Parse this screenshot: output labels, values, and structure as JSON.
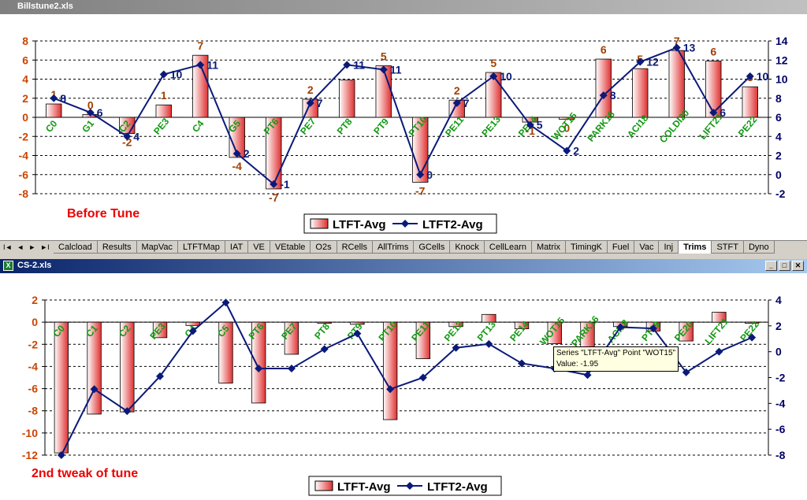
{
  "window1": {
    "title": "Billstune2.xls"
  },
  "window2": {
    "title": "CS-2.xls"
  },
  "sheet_tabs": {
    "nav": [
      "I◄",
      "◄",
      "►",
      "►I"
    ],
    "tabs": [
      "Calcload",
      "Results",
      "MapVac",
      "LTFTMap",
      "IAT",
      "VE",
      "VEtable",
      "O2s",
      "RCells",
      "AllTrims",
      "GCells",
      "Knock",
      "CellLearn",
      "Matrix",
      "TimingK",
      "Fuel",
      "Vac",
      "Inj",
      "Trims",
      "STFT",
      "Dyno"
    ],
    "active": "Trims"
  },
  "tooltip": {
    "line1": "Series \"LTFT-Avg\" Point \"WOT15\"",
    "line2": "Value: -1.95"
  },
  "colors": {
    "bar_top": "#e03030",
    "bar_bottom": "#ffffff",
    "line": "#0a1a7a",
    "left_axis": "#cc4400",
    "right_axis": "#000066",
    "cat_label": "#119911",
    "bar_label": "#a04000",
    "annotation": "#ee0000"
  },
  "chart_data": [
    {
      "type": "bar",
      "annotation": "Before Tune",
      "categories": [
        "C0",
        "G1",
        "C2",
        "PE3",
        "C4",
        "G5",
        "PT6",
        "PE7",
        "PT8",
        "PT9",
        "PT10",
        "PE11",
        "PE13",
        "PE14",
        "WOT15",
        "PARK16",
        "ACI18",
        "COLDI20",
        "LIFT21",
        "PE22"
      ],
      "series": [
        {
          "name": "LTFT-Avg",
          "type": "bar",
          "axis": "left",
          "values": [
            1.4,
            0.3,
            -1.7,
            1.3,
            6.5,
            -4.2,
            -7.5,
            1.9,
            3.9,
            5.4,
            -6.8,
            1.8,
            4.7,
            -0.5,
            -0.2,
            6.1,
            5.1,
            7.0,
            5.9,
            3.2
          ],
          "labels": [
            "1",
            "0",
            "-2",
            "1",
            "7",
            "-4",
            "-7",
            "2",
            "",
            "5",
            "-7",
            "2",
            "5",
            "-1",
            "0",
            "6",
            "5",
            "7",
            "6",
            "3"
          ]
        },
        {
          "name": "LTFT2-Avg",
          "type": "line",
          "axis": "right",
          "values": [
            8,
            6.5,
            4,
            10.5,
            11.5,
            2.2,
            -1,
            7.5,
            11.5,
            11,
            0,
            7.5,
            10.3,
            5.2,
            2.5,
            8.3,
            11.8,
            13.3,
            6.5,
            10.3
          ],
          "labels": [
            "8",
            "6",
            "4",
            "10",
            "11",
            "2",
            "-1",
            "7",
            "11",
            "11",
            "0",
            "7",
            "10",
            "5",
            "2",
            "8",
            "12",
            "13",
            "6",
            "10"
          ]
        }
      ],
      "y_left": {
        "min": -8,
        "max": 8,
        "ticks": [
          -8,
          -6,
          -4,
          -2,
          0,
          2,
          4,
          6,
          8
        ]
      },
      "y_right": {
        "min": -2,
        "max": 14,
        "ticks": [
          -2,
          0,
          2,
          4,
          6,
          8,
          10,
          12,
          14
        ]
      },
      "grid": true,
      "legend": "bottom"
    },
    {
      "type": "bar",
      "annotation": "2nd tweak of tune",
      "categories": [
        "C0",
        "C1",
        "C2",
        "PE3",
        "C4",
        "C5",
        "PT6",
        "PE7",
        "PT8",
        "PT9",
        "PT10",
        "PE11",
        "PE12",
        "PT13",
        "PE14",
        "WOT15",
        "PARK16",
        "ACI18",
        "PT19",
        "PE20",
        "LIFT21",
        "PE22"
      ],
      "series": [
        {
          "name": "LTFT-Avg",
          "type": "bar",
          "axis": "left",
          "values": [
            -11.8,
            -8.3,
            -8.1,
            -1.4,
            -0.3,
            -5.5,
            -7.3,
            -2.9,
            -0.1,
            -0.2,
            -8.8,
            -3.3,
            -0.4,
            0.7,
            -0.6,
            -1.95,
            -2.3,
            -0.4,
            -0.8,
            -1.7,
            0.9,
            -0.1
          ]
        },
        {
          "name": "LTFT2-Avg",
          "type": "line",
          "axis": "right",
          "values": [
            -8,
            -2.9,
            -4.6,
            -1.9,
            1.6,
            3.8,
            -1.3,
            -1.3,
            0.2,
            1.4,
            -2.9,
            -2,
            0.3,
            0.6,
            -0.9,
            -1.3,
            -1.8,
            1.9,
            1.8,
            -1.6,
            0,
            1.1
          ]
        }
      ],
      "y_left": {
        "min": -12,
        "max": 2,
        "ticks": [
          -12,
          -10,
          -8,
          -6,
          -4,
          -2,
          0,
          2
        ]
      },
      "y_right": {
        "min": -8,
        "max": 4,
        "ticks": [
          -8,
          -6,
          -4,
          -2,
          0,
          2,
          4
        ]
      },
      "grid": true,
      "legend": "bottom"
    }
  ]
}
